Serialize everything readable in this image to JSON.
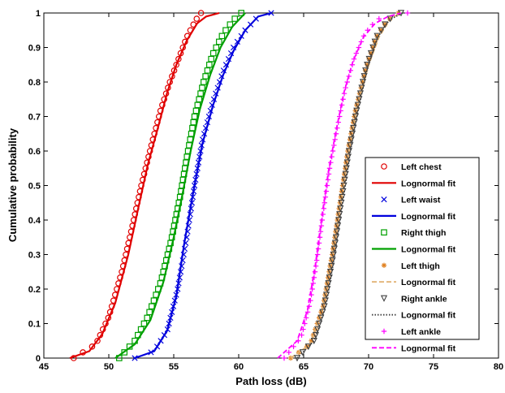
{
  "chart_data": {
    "type": "line",
    "xlabel": "Path loss (dB)",
    "ylabel": "Cumulative probability",
    "xlim": [
      45,
      80
    ],
    "ylim": [
      0,
      1
    ],
    "x_ticks": [
      "45",
      "50",
      "55",
      "60",
      "65",
      "70",
      "75",
      "80"
    ],
    "y_ticks": [
      "0",
      "0.1",
      "0.2",
      "0.3",
      "0.4",
      "0.5",
      "0.6",
      "0.7",
      "0.8",
      "0.9",
      "1"
    ],
    "grid": false,
    "legend_position": "bottom-right",
    "series": [
      {
        "name": "Left chest",
        "marker": "circle",
        "line": "none",
        "color": "#e00000",
        "x": [
          47.3,
          49.0,
          50.0,
          51.0,
          51.8,
          52.5,
          53.3,
          54.0,
          54.7,
          55.3,
          56.0,
          56.7,
          57.1
        ],
        "y": [
          0.0,
          0.04,
          0.12,
          0.25,
          0.38,
          0.5,
          0.62,
          0.72,
          0.8,
          0.86,
          0.93,
          0.98,
          1.0
        ]
      },
      {
        "name": "Lognormal fit",
        "marker": "none",
        "line": "solid",
        "color": "#e00000",
        "x": [
          47.0,
          48.5,
          49.5,
          50.5,
          51.5,
          52.3,
          53.0,
          53.8,
          54.5,
          55.2,
          56.0,
          56.8,
          57.5,
          58.5
        ],
        "y": [
          0.0,
          0.02,
          0.07,
          0.16,
          0.3,
          0.44,
          0.56,
          0.67,
          0.77,
          0.85,
          0.92,
          0.97,
          0.99,
          1.0
        ]
      },
      {
        "name": "Left waist",
        "marker": "x",
        "line": "none",
        "color": "#0000dd",
        "x": [
          52.0,
          53.5,
          54.5,
          55.3,
          56.0,
          56.6,
          57.2,
          58.0,
          58.8,
          59.6,
          60.5,
          61.5,
          62.5
        ],
        "y": [
          0.0,
          0.02,
          0.08,
          0.2,
          0.35,
          0.5,
          0.63,
          0.74,
          0.83,
          0.9,
          0.95,
          0.99,
          1.0
        ]
      },
      {
        "name": "Lognormal fit",
        "marker": "none",
        "line": "solid",
        "color": "#0000dd",
        "x": [
          52.0,
          53.5,
          54.5,
          55.2,
          55.8,
          56.5,
          57.2,
          58.0,
          58.8,
          59.6,
          60.5,
          61.5,
          62.5
        ],
        "y": [
          0.0,
          0.02,
          0.08,
          0.18,
          0.33,
          0.48,
          0.62,
          0.73,
          0.82,
          0.89,
          0.95,
          0.99,
          1.0
        ]
      },
      {
        "name": "Right thigh",
        "marker": "square",
        "line": "none",
        "color": "#00a000",
        "x": [
          50.8,
          52.0,
          53.0,
          54.0,
          54.8,
          55.5,
          56.0,
          56.6,
          57.3,
          58.0,
          58.8,
          59.6,
          60.2
        ],
        "y": [
          0.0,
          0.05,
          0.12,
          0.22,
          0.34,
          0.47,
          0.58,
          0.7,
          0.8,
          0.88,
          0.94,
          0.98,
          1.0
        ]
      },
      {
        "name": "Lognormal fit",
        "marker": "none",
        "line": "solid",
        "color": "#00a000",
        "x": [
          50.5,
          52.0,
          53.2,
          54.2,
          55.0,
          55.7,
          56.3,
          57.0,
          57.8,
          58.6,
          59.5,
          60.5
        ],
        "y": [
          0.0,
          0.04,
          0.11,
          0.22,
          0.35,
          0.48,
          0.6,
          0.72,
          0.82,
          0.9,
          0.96,
          1.0
        ]
      },
      {
        "name": "Left thigh",
        "marker": "star",
        "line": "none",
        "color": "#e08020",
        "x": [
          64.0,
          65.5,
          66.5,
          67.2,
          67.8,
          68.4,
          69.0,
          69.8,
          70.6,
          71.5,
          72.3
        ],
        "y": [
          0.0,
          0.04,
          0.15,
          0.3,
          0.45,
          0.6,
          0.72,
          0.84,
          0.93,
          0.98,
          1.0
        ]
      },
      {
        "name": "Lognormal fit",
        "marker": "none",
        "line": "dashed",
        "color": "#e0b070",
        "x": [
          64.0,
          65.5,
          66.5,
          67.2,
          67.9,
          68.5,
          69.2,
          70.0,
          70.8,
          71.6,
          72.4
        ],
        "y": [
          0.0,
          0.04,
          0.15,
          0.3,
          0.46,
          0.61,
          0.74,
          0.85,
          0.93,
          0.98,
          1.0
        ]
      },
      {
        "name": "Right ankle",
        "marker": "triangle-down",
        "line": "none",
        "color": "#404040",
        "x": [
          64.5,
          65.8,
          66.6,
          67.3,
          67.9,
          68.5,
          69.1,
          69.8,
          70.6,
          71.5,
          72.5
        ],
        "y": [
          0.0,
          0.05,
          0.15,
          0.3,
          0.45,
          0.6,
          0.72,
          0.84,
          0.93,
          0.98,
          1.0
        ]
      },
      {
        "name": "Lognormal fit",
        "marker": "none",
        "line": "dotted",
        "color": "#404040",
        "x": [
          64.5,
          65.8,
          66.7,
          67.4,
          68.0,
          68.6,
          69.2,
          69.9,
          70.7,
          71.6,
          72.6
        ],
        "y": [
          0.0,
          0.05,
          0.15,
          0.3,
          0.45,
          0.6,
          0.72,
          0.84,
          0.93,
          0.98,
          1.0
        ]
      },
      {
        "name": "Left ankle",
        "marker": "plus",
        "line": "none",
        "color": "#ff00ff",
        "x": [
          63.5,
          64.8,
          65.5,
          66.0,
          66.5,
          67.0,
          67.6,
          68.2,
          68.9,
          69.7,
          70.6,
          71.5,
          73.0
        ],
        "y": [
          0.0,
          0.06,
          0.16,
          0.28,
          0.42,
          0.55,
          0.67,
          0.78,
          0.87,
          0.94,
          0.98,
          0.995,
          1.0
        ]
      },
      {
        "name": "Lognormal fit",
        "marker": "none",
        "line": "dashed",
        "color": "#ff00ff",
        "x": [
          63.0,
          64.5,
          65.3,
          65.9,
          66.4,
          66.9,
          67.5,
          68.1,
          68.8,
          69.6,
          70.5,
          71.5,
          72.5
        ],
        "y": [
          0.0,
          0.05,
          0.14,
          0.27,
          0.41,
          0.54,
          0.66,
          0.77,
          0.86,
          0.93,
          0.97,
          0.99,
          1.0
        ]
      }
    ]
  }
}
